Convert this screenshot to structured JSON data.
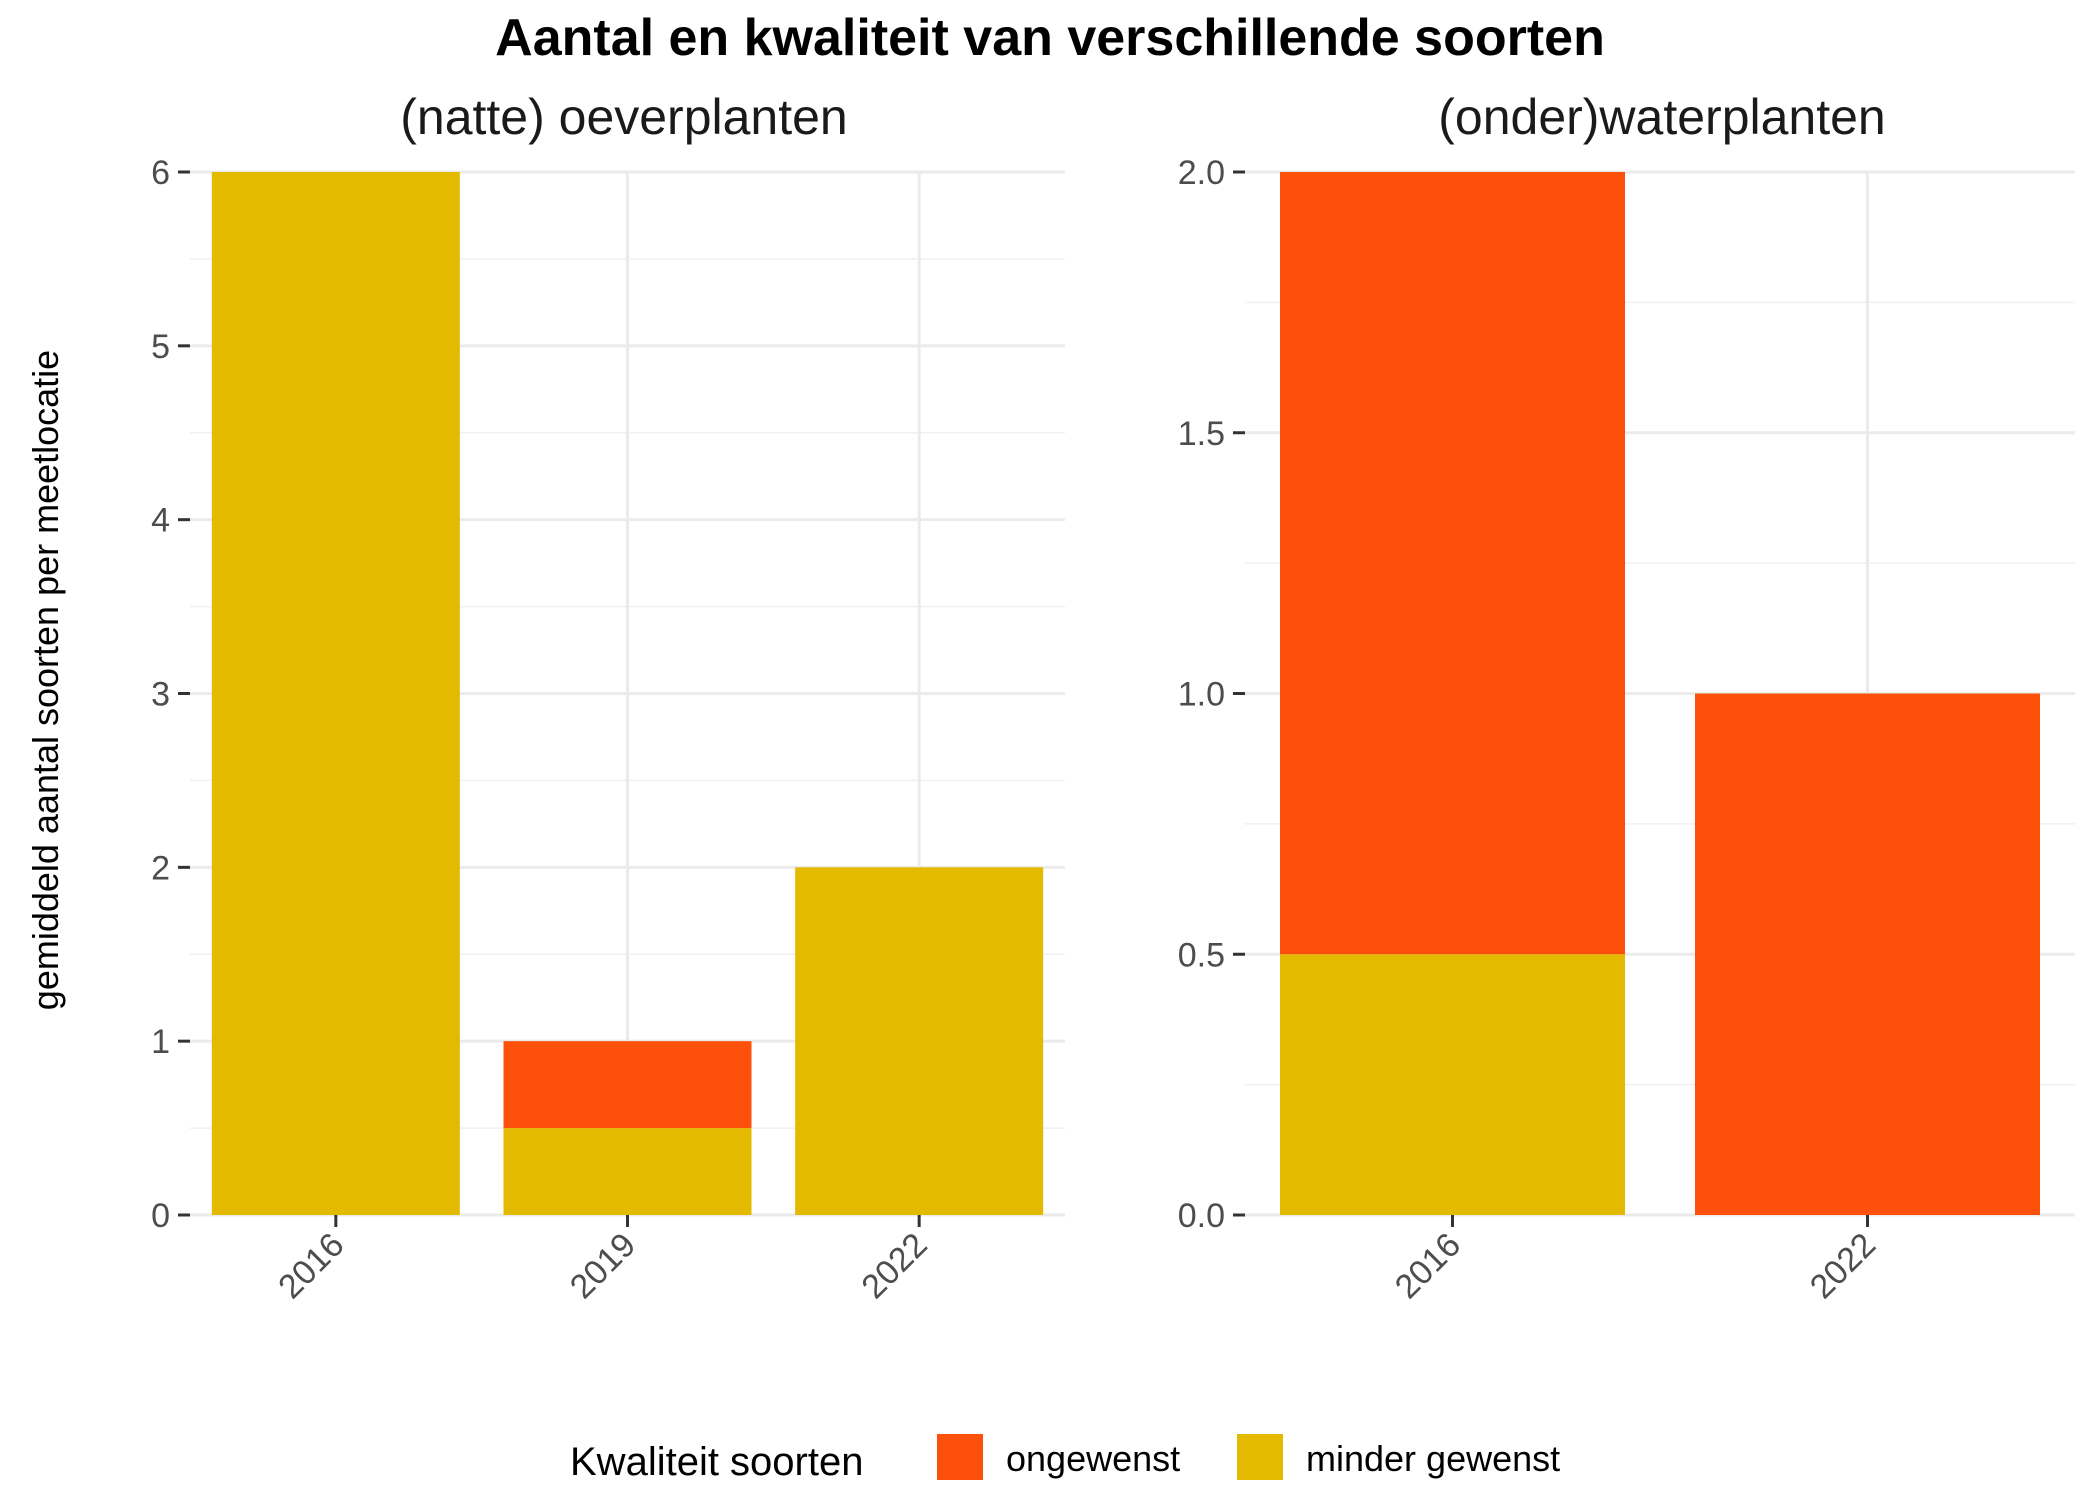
{
  "title": "Aantal en kwaliteit van verschillende soorten",
  "ylabel": "gemiddeld aantal soorten per meetlocatie",
  "legend": {
    "title": "Kwaliteit soorten",
    "position": "bottom",
    "items": [
      {
        "label": "ongewenst",
        "color": "#FC500B"
      },
      {
        "label": "minder gewenst",
        "color": "#E4BA00"
      }
    ]
  },
  "chart_data": [
    {
      "type": "bar",
      "stacked": true,
      "title": "(natte) oeverplanten",
      "categories": [
        "2016",
        "2019",
        "2022"
      ],
      "ylim": [
        0,
        6
      ],
      "yticks": [
        "0",
        "1",
        "2",
        "3",
        "4",
        "5",
        "6"
      ],
      "grid": true,
      "series": [
        {
          "name": "minder gewenst",
          "color": "#E4BA00",
          "values": [
            6,
            0.5,
            2
          ]
        },
        {
          "name": "ongewenst",
          "color": "#FC500B",
          "values": [
            0,
            0.5,
            0
          ]
        }
      ]
    },
    {
      "type": "bar",
      "stacked": true,
      "title": "(onder)waterplanten",
      "categories": [
        "2016",
        "2022"
      ],
      "ylim": [
        0,
        2
      ],
      "yticks": [
        "0.0",
        "0.5",
        "1.0",
        "1.5",
        "2.0"
      ],
      "grid": true,
      "series": [
        {
          "name": "minder gewenst",
          "color": "#E4BA00",
          "values": [
            0.5,
            0
          ]
        },
        {
          "name": "ongewenst",
          "color": "#FC500B",
          "values": [
            1.5,
            1
          ]
        }
      ]
    }
  ]
}
